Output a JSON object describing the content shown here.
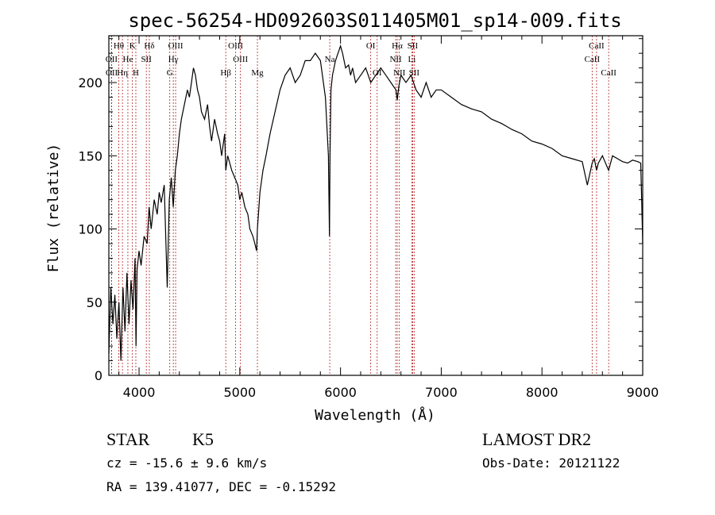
{
  "chart_data": {
    "type": "line",
    "title": "spec-56254-HD092603S011405M01_sp14-009.fits",
    "xlabel": "Wavelength (Å)",
    "ylabel": "Flux (relative)",
    "xlim": [
      3700,
      9000
    ],
    "ylim": [
      0,
      232
    ],
    "xticks": [
      4000,
      5000,
      6000,
      7000,
      8000,
      9000
    ],
    "yticks": [
      0,
      50,
      100,
      150,
      200
    ],
    "grid": false,
    "line_color": "#000000",
    "marker_color": "#b22222",
    "series": [
      {
        "x": [
          3700,
          3720,
          3740,
          3760,
          3780,
          3800,
          3820,
          3840,
          3860,
          3880,
          3900,
          3920,
          3940,
          3960,
          3970,
          3980,
          4000,
          4020,
          4050,
          4080,
          4100,
          4120,
          4150,
          4180,
          4200,
          4220,
          4250,
          4280,
          4300,
          4320,
          4340,
          4360,
          4380,
          4400,
          4420,
          4450,
          4480,
          4500,
          4520,
          4540,
          4560,
          4580,
          4600,
          4620,
          4650,
          4680,
          4700,
          4720,
          4750,
          4780,
          4800,
          4820,
          4850,
          4861,
          4880,
          4900,
          4920,
          4950,
          4980,
          5000,
          5020,
          5050,
          5080,
          5100,
          5130,
          5150,
          5167,
          5175,
          5185,
          5200,
          5230,
          5260,
          5300,
          5350,
          5400,
          5450,
          5500,
          5550,
          5600,
          5650,
          5700,
          5750,
          5800,
          5850,
          5880,
          5890,
          5896,
          5905,
          5920,
          5950,
          6000,
          6020,
          6050,
          6080,
          6100,
          6120,
          6150,
          6200,
          6250,
          6300,
          6350,
          6400,
          6450,
          6500,
          6550,
          6563,
          6580,
          6600,
          6650,
          6700,
          6750,
          6800,
          6850,
          6900,
          6950,
          7000,
          7100,
          7200,
          7300,
          7400,
          7500,
          7600,
          7700,
          7800,
          7900,
          8000,
          8100,
          8200,
          8300,
          8400,
          8450,
          8498,
          8520,
          8542,
          8560,
          8600,
          8662,
          8700,
          8750,
          8800,
          8850,
          8900,
          8950,
          8980,
          8990,
          9000
        ],
        "y": [
          15,
          60,
          35,
          55,
          25,
          50,
          10,
          60,
          30,
          70,
          35,
          65,
          45,
          80,
          20,
          72,
          85,
          75,
          95,
          90,
          115,
          100,
          120,
          110,
          125,
          118,
          130,
          60,
          120,
          135,
          115,
          140,
          150,
          165,
          175,
          185,
          195,
          190,
          200,
          210,
          205,
          195,
          190,
          180,
          175,
          185,
          170,
          160,
          175,
          165,
          160,
          150,
          165,
          140,
          150,
          145,
          140,
          135,
          130,
          120,
          125,
          115,
          110,
          100,
          95,
          90,
          85,
          100,
          110,
          125,
          140,
          150,
          165,
          180,
          195,
          205,
          210,
          200,
          205,
          215,
          215,
          220,
          215,
          190,
          150,
          95,
          150,
          195,
          205,
          215,
          225,
          220,
          210,
          212,
          205,
          210,
          200,
          205,
          210,
          200,
          205,
          210,
          205,
          200,
          195,
          188,
          198,
          205,
          200,
          205,
          195,
          190,
          200,
          190,
          195,
          195,
          190,
          185,
          182,
          180,
          175,
          172,
          168,
          165,
          160,
          158,
          155,
          150,
          148,
          146,
          130,
          145,
          148,
          140,
          145,
          150,
          140,
          150,
          148,
          146,
          145,
          147,
          146,
          145,
          120,
          90
        ]
      }
    ],
    "lines": [
      {
        "label": "Hθ",
        "x": 3798,
        "row": 0
      },
      {
        "label": "OII",
        "x": 3727,
        "row": 1
      },
      {
        "label": "OII",
        "x": 3728,
        "row": 2
      },
      {
        "label": "Hη",
        "x": 3835,
        "row": 2
      },
      {
        "label": "He",
        "x": 3889,
        "row": 1
      },
      {
        "label": "K",
        "x": 3934,
        "row": 0
      },
      {
        "label": "H",
        "x": 3968,
        "row": 2
      },
      {
        "label": "SII",
        "x": 4072,
        "row": 1
      },
      {
        "label": "Hδ",
        "x": 4102,
        "row": 0
      },
      {
        "label": "OIII",
        "x": 4363,
        "row": 0
      },
      {
        "label": "Hγ",
        "x": 4340,
        "row": 1
      },
      {
        "label": "G",
        "x": 4305,
        "row": 2
      },
      {
        "label": "Hβ",
        "x": 4861,
        "row": 2
      },
      {
        "label": "OIII",
        "x": 4959,
        "row": 0
      },
      {
        "label": "OIII",
        "x": 5007,
        "row": 1
      },
      {
        "label": "Mg",
        "x": 5175,
        "row": 2
      },
      {
        "label": "Na",
        "x": 5893,
        "row": 1
      },
      {
        "label": "OI",
        "x": 6300,
        "row": 0
      },
      {
        "label": "OI",
        "x": 6364,
        "row": 2
      },
      {
        "label": "Hα",
        "x": 6563,
        "row": 0
      },
      {
        "label": "NII",
        "x": 6548,
        "row": 1
      },
      {
        "label": "NII",
        "x": 6584,
        "row": 2
      },
      {
        "label": "SII",
        "x": 6716,
        "row": 0
      },
      {
        "label": "Li",
        "x": 6708,
        "row": 1
      },
      {
        "label": "SII",
        "x": 6731,
        "row": 2
      },
      {
        "label": "CaII",
        "x": 8498,
        "row": 1
      },
      {
        "label": "CaII",
        "x": 8542,
        "row": 0
      },
      {
        "label": "CaII",
        "x": 8662,
        "row": 2
      }
    ]
  },
  "info": {
    "class": "STAR",
    "subclass": "K5",
    "survey": "LAMOST DR2",
    "cz": "cz = -15.6 ± 9.6 km/s",
    "obs_date": "Obs-Date: 20121122",
    "coords": "RA = 139.41077, DEC =  -0.15292"
  }
}
